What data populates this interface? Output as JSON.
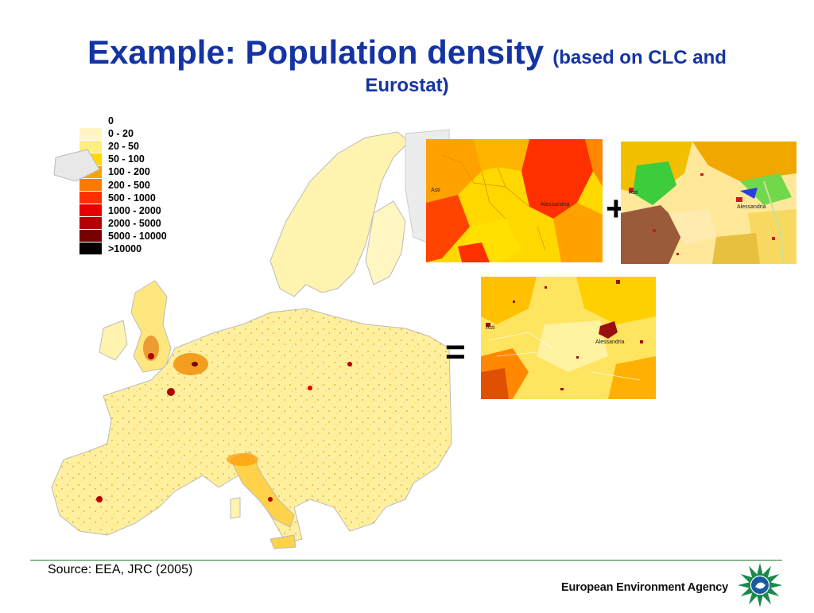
{
  "title": {
    "main": "Example: Population density",
    "sub_line1": "(based on CLC and",
    "sub_line2": "Eurostat)"
  },
  "legend": {
    "items": [
      {
        "label": "0",
        "color": "#ffffff"
      },
      {
        "label": "0 - 20",
        "color": "#fff6c2"
      },
      {
        "label": "20 - 50",
        "color": "#ffee80"
      },
      {
        "label": "50 - 100",
        "color": "#ffd800"
      },
      {
        "label": "100 - 200",
        "color": "#ffa200"
      },
      {
        "label": "200 - 500",
        "color": "#ff7800"
      },
      {
        "label": "500 - 1000",
        "color": "#ff3000"
      },
      {
        "label": "1000 - 2000",
        "color": "#e60000"
      },
      {
        "label": "2000 - 5000",
        "color": "#b40000"
      },
      {
        "label": "5000 - 10000",
        "color": "#780000"
      },
      {
        "label": ">10000",
        "color": "#000000"
      }
    ]
  },
  "maps": {
    "eurostat": {
      "labels": [
        "Asti",
        "Alessandria"
      ]
    },
    "clc": {
      "labels": [
        "Asti",
        "Alessandria"
      ]
    },
    "result": {
      "labels": [
        "Asti",
        "Alessandria"
      ]
    }
  },
  "operators": {
    "plus": "+",
    "equals": "="
  },
  "footer": {
    "source": "Source: EEA, JRC (2005)",
    "agency": "European Environment Agency"
  }
}
